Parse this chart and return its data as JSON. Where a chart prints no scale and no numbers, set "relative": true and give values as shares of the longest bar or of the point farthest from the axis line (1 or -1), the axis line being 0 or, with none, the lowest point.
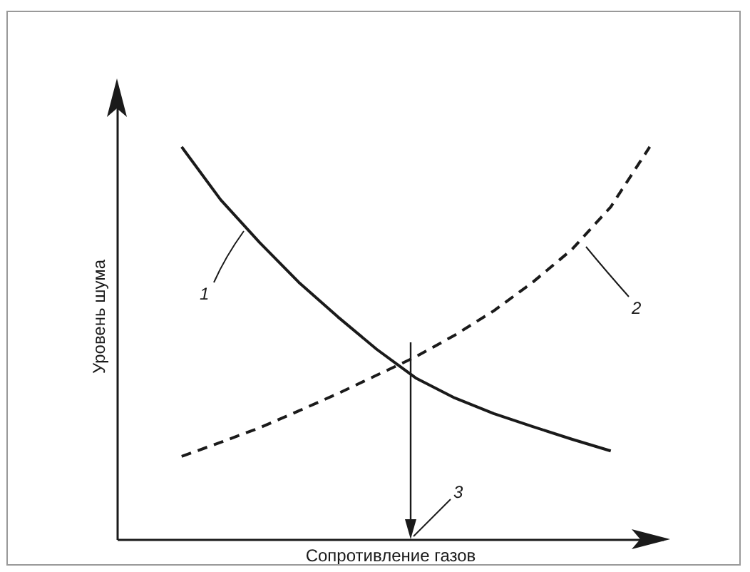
{
  "chart_data": {
    "type": "line",
    "relative": true,
    "xlabel": "Сопротивление газов",
    "ylabel": "Уровень шума",
    "categories": [
      null,
      null,
      null,
      null,
      null,
      null,
      null,
      null,
      null,
      null,
      null,
      null,
      null
    ],
    "series": [
      {
        "color": "#1a1a1a",
        "line_style": "solid",
        "values": [
          1.0,
          0.865,
          0.756,
          0.655,
          0.567,
          0.484,
          0.411,
          0.36,
          0.32,
          0.287,
          0.255,
          0.225,
          null
        ]
      },
      {
        "color": "#1a1a1a",
        "line_style": "dashed",
        "values": [
          0.211,
          0.247,
          0.284,
          0.327,
          0.371,
          0.418,
          0.465,
          0.52,
          0.582,
          0.655,
          0.738,
          0.847,
          1.0
        ]
      }
    ],
    "annotations": [
      "1",
      "2",
      "3"
    ],
    "tick_labels": false,
    "marker": "none"
  }
}
